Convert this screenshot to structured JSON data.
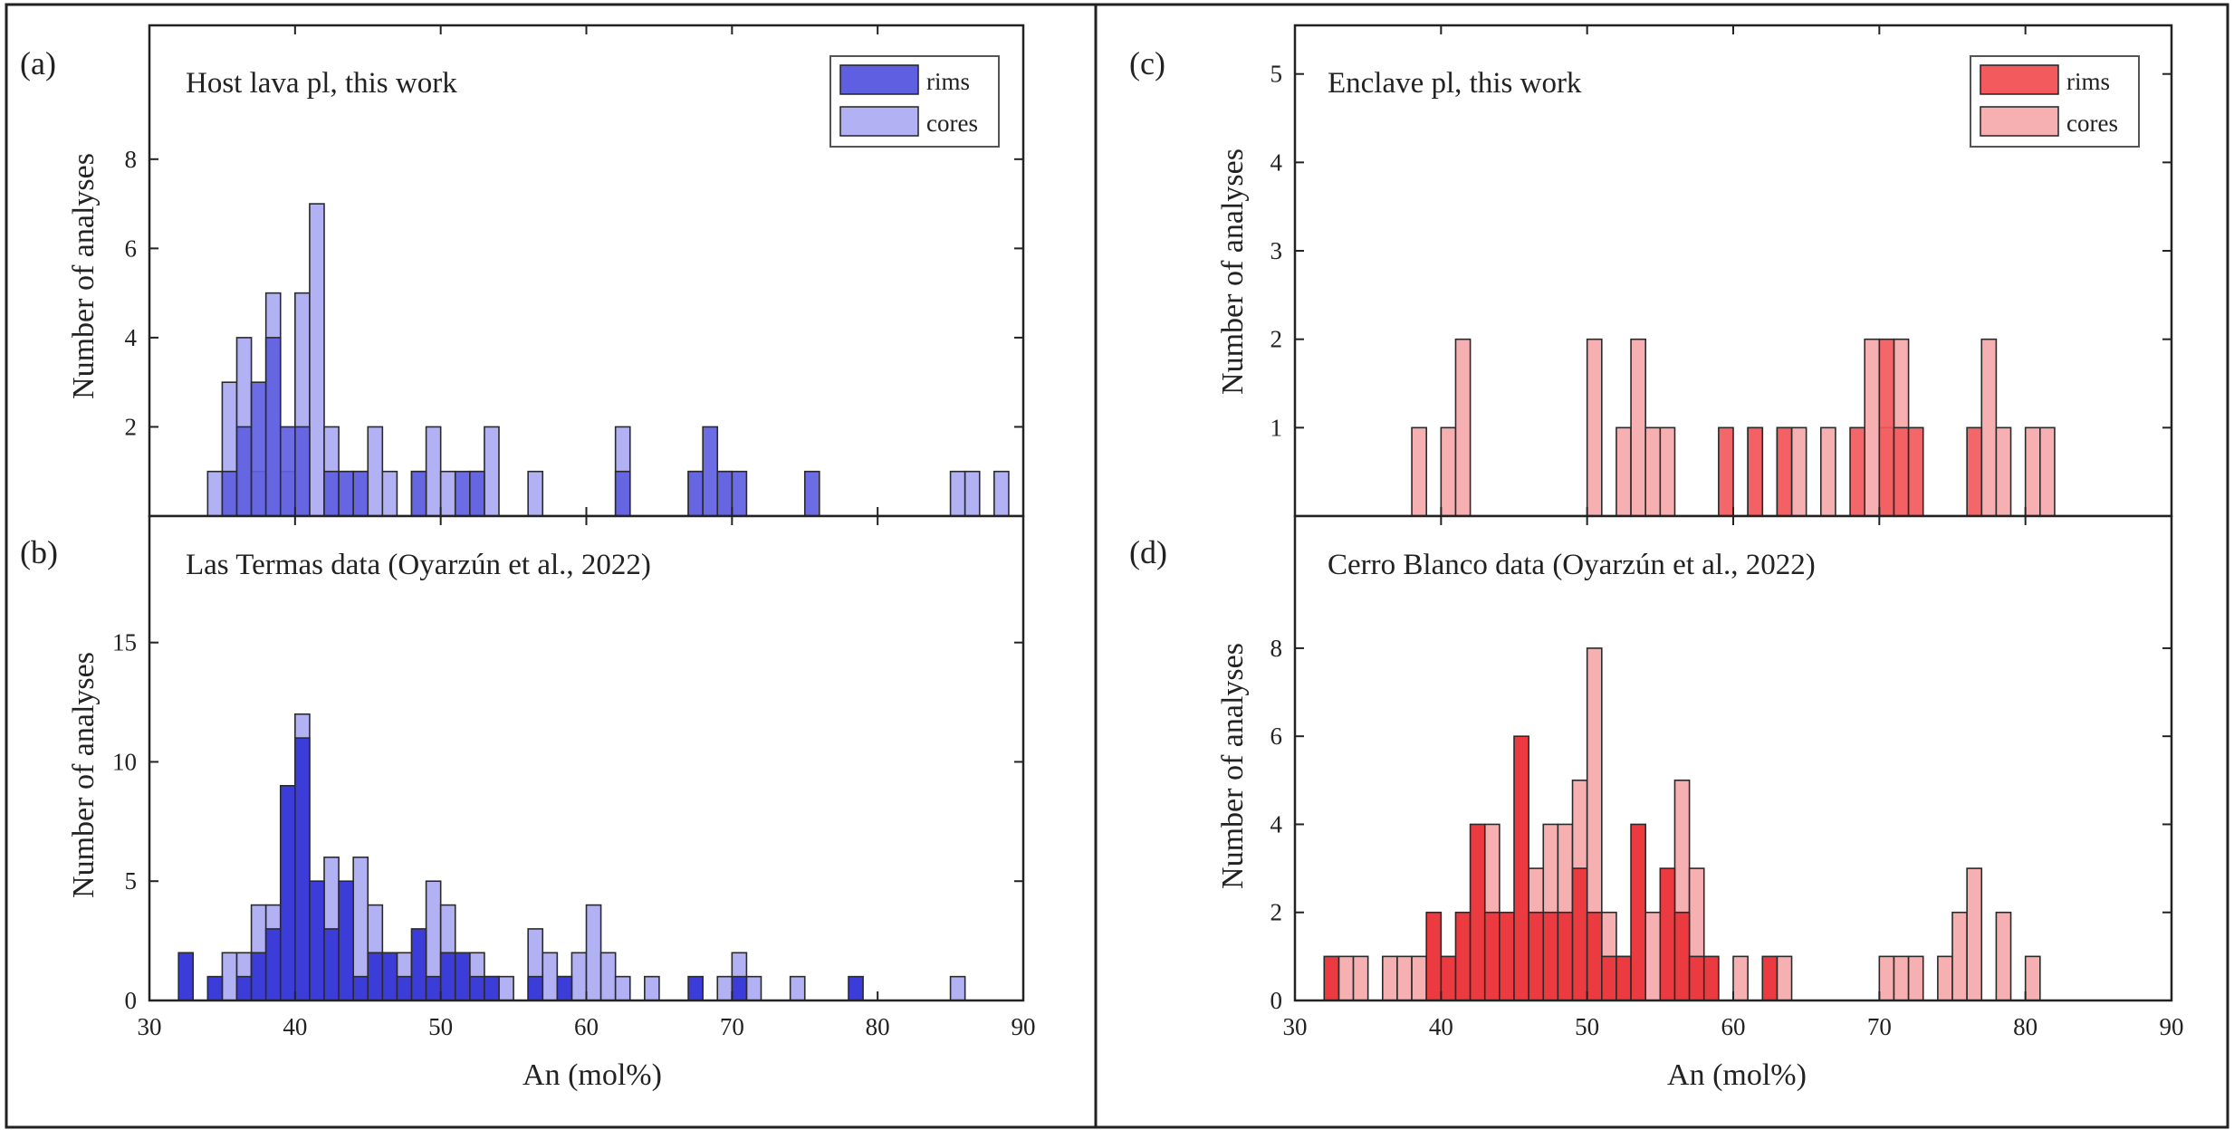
{
  "figure": {
    "colors": {
      "blue_rims": "#5f5fe2",
      "blue_cores": "#b1b1f3",
      "blue_rims_dense": "#3c3cd8",
      "red_rims": "#f25a5e",
      "red_cores": "#f6b0b2",
      "red_rims_dense": "#ec3b40",
      "frame": "#222222"
    }
  },
  "chart_data": [
    {
      "id": "a",
      "type": "bar",
      "panel_letter": "(a)",
      "title": "Host lava pl, this work",
      "xlabel": "",
      "ylabel": "Number of analyses",
      "xlim": [
        30,
        90
      ],
      "ylim": [
        0,
        11
      ],
      "yticks": [
        2,
        4,
        6,
        8
      ],
      "xticks": [],
      "bin_width": 1,
      "legend": {
        "position": "top-right",
        "entries": [
          "rims",
          "cores"
        ]
      },
      "palette": "blue",
      "dense_rims": false,
      "series": [
        {
          "name": "rims",
          "bins": [
            [
              35,
              1
            ],
            [
              36,
              2
            ],
            [
              37,
              3
            ],
            [
              38,
              4
            ],
            [
              39,
              2
            ],
            [
              40,
              2
            ],
            [
              42,
              1
            ],
            [
              43,
              1
            ],
            [
              44,
              1
            ],
            [
              48,
              1
            ],
            [
              51,
              1
            ],
            [
              52,
              1
            ],
            [
              62,
              1
            ],
            [
              67,
              1
            ],
            [
              68,
              2
            ],
            [
              69,
              1
            ],
            [
              70,
              1
            ],
            [
              75,
              1
            ]
          ]
        },
        {
          "name": "cores",
          "bins": [
            [
              34,
              1
            ],
            [
              35,
              3
            ],
            [
              36,
              4
            ],
            [
              37,
              1
            ],
            [
              38,
              5
            ],
            [
              39,
              1
            ],
            [
              40,
              5
            ],
            [
              41,
              7
            ],
            [
              42,
              2
            ],
            [
              43,
              1
            ],
            [
              44,
              1
            ],
            [
              45,
              2
            ],
            [
              46,
              1
            ],
            [
              48,
              1
            ],
            [
              49,
              2
            ],
            [
              50,
              1
            ],
            [
              52,
              1
            ],
            [
              53,
              2
            ],
            [
              56,
              1
            ],
            [
              62,
              2
            ],
            [
              67,
              1
            ],
            [
              69,
              1
            ],
            [
              85,
              1
            ],
            [
              86,
              1
            ],
            [
              88,
              1
            ]
          ]
        }
      ]
    },
    {
      "id": "b",
      "type": "bar",
      "panel_letter": "(b)",
      "title": "Las Termas data (Oyarzún et al., 2022)",
      "xlabel": "An (mol%)",
      "ylabel": "Number of analyses",
      "xlim": [
        30,
        90
      ],
      "ylim": [
        0,
        20.3
      ],
      "yticks": [
        0,
        5,
        10,
        15
      ],
      "xticks": [
        30,
        40,
        50,
        60,
        70,
        80,
        90
      ],
      "bin_width": 1,
      "legend": null,
      "palette": "blue",
      "dense_rims": true,
      "series": [
        {
          "name": "rims",
          "bins": [
            [
              32,
              2
            ],
            [
              34,
              1
            ],
            [
              36,
              1
            ],
            [
              37,
              2
            ],
            [
              38,
              3
            ],
            [
              39,
              9
            ],
            [
              40,
              11
            ],
            [
              41,
              5
            ],
            [
              42,
              3
            ],
            [
              43,
              5
            ],
            [
              44,
              1
            ],
            [
              45,
              2
            ],
            [
              46,
              2
            ],
            [
              47,
              1
            ],
            [
              48,
              3
            ],
            [
              49,
              1
            ],
            [
              50,
              2
            ],
            [
              51,
              2
            ],
            [
              52,
              1
            ],
            [
              53,
              1
            ],
            [
              56,
              1
            ],
            [
              58,
              1
            ],
            [
              67,
              1
            ],
            [
              70,
              1
            ],
            [
              78,
              1
            ]
          ]
        },
        {
          "name": "cores",
          "bins": [
            [
              35,
              2
            ],
            [
              36,
              2
            ],
            [
              37,
              4
            ],
            [
              38,
              4
            ],
            [
              40,
              12
            ],
            [
              41,
              5
            ],
            [
              42,
              6
            ],
            [
              43,
              2
            ],
            [
              44,
              6
            ],
            [
              45,
              4
            ],
            [
              46,
              2
            ],
            [
              47,
              2
            ],
            [
              48,
              1
            ],
            [
              49,
              5
            ],
            [
              50,
              4
            ],
            [
              51,
              2
            ],
            [
              52,
              2
            ],
            [
              53,
              1
            ],
            [
              54,
              1
            ],
            [
              56,
              3
            ],
            [
              57,
              2
            ],
            [
              58,
              1
            ],
            [
              59,
              2
            ],
            [
              60,
              4
            ],
            [
              61,
              2
            ],
            [
              62,
              1
            ],
            [
              64,
              1
            ],
            [
              69,
              1
            ],
            [
              70,
              2
            ],
            [
              71,
              1
            ],
            [
              74,
              1
            ],
            [
              85,
              1
            ]
          ]
        }
      ]
    },
    {
      "id": "c",
      "type": "bar",
      "panel_letter": "(c)",
      "title": "Enclave pl, this work",
      "xlabel": "",
      "ylabel": "Number of analyses",
      "xlim": [
        30,
        90
      ],
      "ylim": [
        0,
        5.55
      ],
      "yticks": [
        1,
        2,
        3,
        4,
        5
      ],
      "xticks": [],
      "bin_width": 1,
      "legend": {
        "position": "top-right",
        "entries": [
          "rims",
          "cores"
        ]
      },
      "palette": "red",
      "dense_rims": false,
      "series": [
        {
          "name": "rims",
          "bins": [
            [
              59,
              1
            ],
            [
              61,
              1
            ],
            [
              63,
              1
            ],
            [
              68,
              1
            ],
            [
              70,
              2
            ],
            [
              71,
              1
            ],
            [
              72,
              1
            ],
            [
              76,
              1
            ]
          ]
        },
        {
          "name": "cores",
          "bins": [
            [
              38,
              1
            ],
            [
              40,
              1
            ],
            [
              41,
              2
            ],
            [
              50,
              2
            ],
            [
              52,
              1
            ],
            [
              53,
              2
            ],
            [
              54,
              1
            ],
            [
              55,
              1
            ],
            [
              61,
              1
            ],
            [
              63,
              1
            ],
            [
              64,
              1
            ],
            [
              66,
              1
            ],
            [
              69,
              2
            ],
            [
              70,
              1
            ],
            [
              71,
              2
            ],
            [
              77,
              2
            ],
            [
              78,
              1
            ],
            [
              80,
              1
            ],
            [
              81,
              1
            ]
          ]
        }
      ]
    },
    {
      "id": "d",
      "type": "bar",
      "panel_letter": "(d)",
      "title": "Cerro Blanco data (Oyarzún et al., 2022)",
      "xlabel": "An (mol%)",
      "ylabel": "Number of analyses",
      "xlim": [
        30,
        90
      ],
      "ylim": [
        0,
        11
      ],
      "yticks": [
        0,
        2,
        4,
        6,
        8
      ],
      "xticks": [
        30,
        40,
        50,
        60,
        70,
        80,
        90
      ],
      "bin_width": 1,
      "legend": null,
      "palette": "red",
      "dense_rims": true,
      "series": [
        {
          "name": "rims",
          "bins": [
            [
              32,
              1
            ],
            [
              39,
              2
            ],
            [
              40,
              1
            ],
            [
              41,
              2
            ],
            [
              42,
              4
            ],
            [
              43,
              2
            ],
            [
              44,
              2
            ],
            [
              45,
              6
            ],
            [
              46,
              2
            ],
            [
              47,
              2
            ],
            [
              48,
              2
            ],
            [
              49,
              3
            ],
            [
              50,
              2
            ],
            [
              51,
              1
            ],
            [
              52,
              1
            ],
            [
              53,
              4
            ],
            [
              55,
              3
            ],
            [
              56,
              2
            ],
            [
              57,
              1
            ],
            [
              58,
              1
            ],
            [
              62,
              1
            ]
          ]
        },
        {
          "name": "cores",
          "bins": [
            [
              33,
              1
            ],
            [
              34,
              1
            ],
            [
              36,
              1
            ],
            [
              37,
              1
            ],
            [
              38,
              1
            ],
            [
              39,
              1
            ],
            [
              43,
              4
            ],
            [
              44,
              1
            ],
            [
              46,
              3
            ],
            [
              47,
              4
            ],
            [
              48,
              4
            ],
            [
              49,
              5
            ],
            [
              50,
              8
            ],
            [
              51,
              2
            ],
            [
              52,
              1
            ],
            [
              54,
              2
            ],
            [
              56,
              5
            ],
            [
              57,
              3
            ],
            [
              60,
              1
            ],
            [
              63,
              1
            ],
            [
              70,
              1
            ],
            [
              71,
              1
            ],
            [
              72,
              1
            ],
            [
              74,
              1
            ],
            [
              75,
              2
            ],
            [
              76,
              3
            ],
            [
              78,
              2
            ],
            [
              80,
              1
            ]
          ]
        }
      ]
    }
  ]
}
